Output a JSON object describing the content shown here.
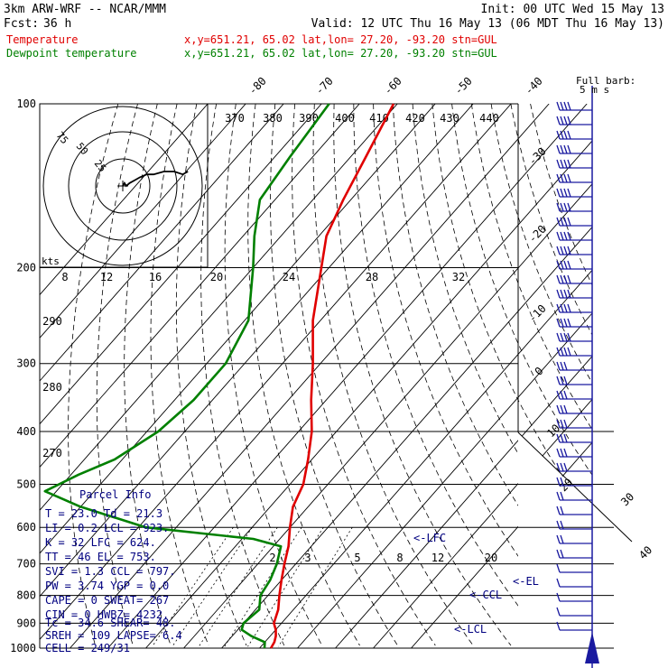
{
  "header": {
    "model": "3km ARW-WRF -- NCAR/MMM",
    "init": "Init: 00 UTC Wed 15 May 13",
    "fcst_label": "Fcst:",
    "fcst_value": "36 h",
    "valid": "Valid: 12 UTC Thu 16 May 13 (06 MDT Thu 16 May 13)",
    "legend": [
      {
        "name": "Temperature",
        "info": "x,y=651.21, 65.02   lat,lon= 27.20, -93.20   stn=GUL",
        "color": "#e00000"
      },
      {
        "name": "Dewpoint temperature",
        "info": "x,y=651.21, 65.02   lat,lon= 27.20, -93.20   stn=GUL",
        "color": "#008000"
      }
    ]
  },
  "barb_legend": {
    "line1": "Full barb:",
    "line2": "5 m s"
  },
  "hodograph": {
    "unit": "kts",
    "ring_labels": [
      "75",
      "50",
      "25"
    ],
    "speed_labels": [
      "8",
      "12",
      "16",
      "20",
      "24",
      "28",
      "32"
    ]
  },
  "parcel_info": {
    "title": "Parcel Info",
    "rows": [
      "T   =   23.0  Td =  21.3",
      "LI  =    0.2  LCL =  923.",
      "K   =     32  LFC =  624.",
      "TT  =     46  EL  =  753.",
      "SVI =    1.3  CCL =  797.",
      "PW  =   3.74  YGP =   0.0",
      "CAPE =     0  SWEAT=  267",
      "CIN =      0  HWBZ= 4232.",
      "Tc  =   34.6  SHEAR=  48.",
      "SREH =   109  LAPSE=  6.4",
      "CELL = 249/31"
    ]
  },
  "level_markers": [
    "<-LFC",
    "<-EL",
    "<-CCL",
    "<-LCL"
  ],
  "chart_data": {
    "type": "line",
    "title": "",
    "xlabel": "",
    "ylabel": "",
    "y_axis": "pressure (hPa), log scale",
    "pressure_levels": [
      100,
      200,
      300,
      400,
      500,
      600,
      700,
      800,
      900,
      1000
    ],
    "ylim": [
      1000,
      100
    ],
    "isotherm_labels": [
      "-80",
      "-70",
      "-60",
      "-50",
      "-40",
      "-30",
      "-20",
      "-10",
      "0",
      "10",
      "20",
      "30",
      "40"
    ],
    "theta_labels_top": [
      "370",
      "380",
      "390",
      "400",
      "410",
      "420",
      "430",
      "440"
    ],
    "theta_labels_left": [
      "290",
      "280",
      "270"
    ],
    "mixing_ratio_labels": [
      "2",
      "3",
      "5",
      "8",
      "12",
      "20"
    ],
    "series": [
      {
        "name": "Temperature",
        "color": "#e00000",
        "pressure": [
          1000,
          975,
          950,
          925,
          900,
          850,
          800,
          750,
          700,
          650,
          600,
          550,
          500,
          450,
          400,
          350,
          300,
          250,
          200,
          175,
          150,
          125,
          100
        ],
        "values": [
          23.0,
          22.5,
          21.5,
          20.0,
          18.0,
          16.0,
          13.0,
          10.0,
          7.0,
          4.0,
          0.0,
          -4.0,
          -6.5,
          -11.0,
          -16.5,
          -24.0,
          -32.0,
          -42.0,
          -52.0,
          -58.0,
          -62.0,
          -66.0,
          -71.0
        ]
      },
      {
        "name": "Dewpoint temperature",
        "color": "#008000",
        "pressure": [
          1000,
          975,
          950,
          925,
          900,
          850,
          800,
          750,
          700,
          650,
          630,
          600,
          550,
          515,
          480,
          450,
          400,
          350,
          300,
          250,
          200,
          175,
          150,
          125,
          100
        ],
        "values": [
          21.3,
          20.0,
          15.0,
          11.0,
          10.0,
          11.0,
          8.0,
          7.0,
          5.0,
          2.0,
          -7.0,
          -38.0,
          -60.0,
          -73.0,
          -68.0,
          -62.0,
          -57.0,
          -55.0,
          -55.0,
          -59.0,
          -70.0,
          -77.0,
          -84.0,
          -86.0,
          -88.0
        ]
      }
    ],
    "hodograph_trace": [
      [
        0,
        0
      ],
      [
        1,
        -1
      ],
      [
        2,
        0
      ],
      [
        4,
        -1
      ],
      [
        7,
        -2
      ],
      [
        10,
        -3
      ],
      [
        14,
        -4
      ],
      [
        18,
        -4
      ],
      [
        24,
        -5
      ],
      [
        30,
        -5
      ],
      [
        35,
        -4
      ],
      [
        38,
        -5
      ]
    ],
    "wind_barbs": "right margin column, westerly to southwesterly winds; strongest near 100-200 hPa",
    "grid": true
  }
}
